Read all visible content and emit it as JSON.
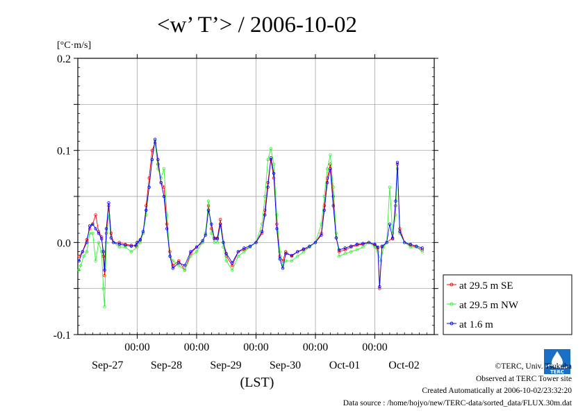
{
  "chart_data": {
    "type": "line",
    "title": "<w’ T’> / 2006-10-02",
    "ylabel": "[°C·m/s]",
    "xlabel": "(LST)",
    "ylim": [
      -0.1,
      0.2
    ],
    "yticks": [
      {
        "value": 0.2,
        "label": "0.2"
      },
      {
        "value": 0.1,
        "label": "0.1"
      },
      {
        "value": 0.0,
        "label": "0.0"
      },
      {
        "value": -0.1,
        "label": "-0.1"
      }
    ],
    "xlim_days": [
      0,
      6
    ],
    "midnight_ticks": [
      {
        "day": 1,
        "time_label": "00:00",
        "date_label": "Sep-28"
      },
      {
        "day": 2,
        "time_label": "00:00",
        "date_label": "Sep-29"
      },
      {
        "day": 3,
        "time_label": "00:00",
        "date_label": "Sep-30"
      },
      {
        "day": 4,
        "time_label": "00:00",
        "date_label": "Oct-01"
      },
      {
        "day": 5,
        "time_label": "00:00",
        "date_label": "Oct-02"
      }
    ],
    "first_date_label": {
      "day": 0.5,
      "label": "Sep-27"
    },
    "series": [
      {
        "name": "at 29.5 m SE",
        "color": "#ff0000",
        "points": [
          [
            0.02,
            -0.015
          ],
          [
            0.08,
            -0.01
          ],
          [
            0.15,
            0.003
          ],
          [
            0.2,
            0.015
          ],
          [
            0.25,
            0.02
          ],
          [
            0.3,
            0.03
          ],
          [
            0.35,
            0.012
          ],
          [
            0.4,
            0.006
          ],
          [
            0.43,
            -0.015
          ],
          [
            0.45,
            -0.036
          ],
          [
            0.48,
            0.01
          ],
          [
            0.52,
            0.04
          ],
          [
            0.56,
            0.01
          ],
          [
            0.6,
            0.0
          ],
          [
            0.7,
            0.0
          ],
          [
            0.8,
            -0.002
          ],
          [
            0.9,
            -0.003
          ],
          [
            0.98,
            -0.004
          ],
          [
            1.0,
            0.0
          ],
          [
            1.05,
            0.002
          ],
          [
            1.1,
            0.01
          ],
          [
            1.15,
            0.04
          ],
          [
            1.2,
            0.07
          ],
          [
            1.25,
            0.1
          ],
          [
            1.3,
            0.108
          ],
          [
            1.35,
            0.085
          ],
          [
            1.4,
            0.065
          ],
          [
            1.45,
            0.06
          ],
          [
            1.5,
            0.02
          ],
          [
            1.55,
            -0.01
          ],
          [
            1.6,
            -0.025
          ],
          [
            1.7,
            -0.02
          ],
          [
            1.8,
            -0.03
          ],
          [
            1.9,
            -0.012
          ],
          [
            2.0,
            -0.005
          ],
          [
            2.1,
            0.0
          ],
          [
            2.15,
            0.01
          ],
          [
            2.2,
            0.04
          ],
          [
            2.25,
            0.015
          ],
          [
            2.3,
            0.005
          ],
          [
            2.35,
            0.005
          ],
          [
            2.4,
            0.025
          ],
          [
            2.45,
            0.0
          ],
          [
            2.5,
            -0.015
          ],
          [
            2.6,
            -0.025
          ],
          [
            2.7,
            -0.01
          ],
          [
            2.8,
            -0.008
          ],
          [
            2.9,
            -0.005
          ],
          [
            3.0,
            0.0
          ],
          [
            3.1,
            0.01
          ],
          [
            3.15,
            0.035
          ],
          [
            3.2,
            0.065
          ],
          [
            3.25,
            0.09
          ],
          [
            3.3,
            0.07
          ],
          [
            3.35,
            0.02
          ],
          [
            3.4,
            -0.015
          ],
          [
            3.45,
            -0.02
          ],
          [
            3.5,
            -0.01
          ],
          [
            3.6,
            -0.015
          ],
          [
            3.7,
            -0.01
          ],
          [
            3.8,
            -0.008
          ],
          [
            3.9,
            -0.005
          ],
          [
            4.0,
            0.0
          ],
          [
            4.1,
            0.01
          ],
          [
            4.15,
            0.04
          ],
          [
            4.2,
            0.07
          ],
          [
            4.25,
            0.085
          ],
          [
            4.3,
            0.05
          ],
          [
            4.35,
            0.005
          ],
          [
            4.4,
            -0.01
          ],
          [
            4.5,
            -0.008
          ],
          [
            4.6,
            -0.005
          ],
          [
            4.7,
            -0.003
          ],
          [
            4.8,
            -0.002
          ],
          [
            4.9,
            0.0
          ],
          [
            5.0,
            -0.003
          ],
          [
            5.05,
            -0.006
          ],
          [
            5.08,
            -0.05
          ],
          [
            5.12,
            -0.005
          ],
          [
            5.2,
            0.0
          ],
          [
            5.3,
            0.005
          ],
          [
            5.35,
            0.04
          ],
          [
            5.38,
            0.085
          ],
          [
            5.42,
            0.015
          ],
          [
            5.5,
            0.0
          ],
          [
            5.6,
            -0.003
          ],
          [
            5.7,
            -0.005
          ],
          [
            5.8,
            -0.008
          ]
        ]
      },
      {
        "name": "at 29.5 m NW",
        "color": "#33ee33",
        "points": [
          [
            0.02,
            -0.03
          ],
          [
            0.05,
            -0.025
          ],
          [
            0.1,
            -0.015
          ],
          [
            0.15,
            -0.01
          ],
          [
            0.2,
            0.01
          ],
          [
            0.25,
            0.01
          ],
          [
            0.3,
            -0.02
          ],
          [
            0.35,
            0.0
          ],
          [
            0.4,
            -0.01
          ],
          [
            0.43,
            -0.05
          ],
          [
            0.45,
            -0.07
          ],
          [
            0.48,
            0.0
          ],
          [
            0.52,
            0.03
          ],
          [
            0.56,
            0.005
          ],
          [
            0.6,
            0.0
          ],
          [
            0.7,
            -0.005
          ],
          [
            0.8,
            -0.005
          ],
          [
            0.9,
            -0.01
          ],
          [
            1.0,
            -0.005
          ],
          [
            1.05,
            0.0
          ],
          [
            1.1,
            0.01
          ],
          [
            1.15,
            0.03
          ],
          [
            1.2,
            0.06
          ],
          [
            1.25,
            0.09
          ],
          [
            1.3,
            0.11
          ],
          [
            1.35,
            0.08
          ],
          [
            1.4,
            0.07
          ],
          [
            1.45,
            0.08
          ],
          [
            1.5,
            0.03
          ],
          [
            1.55,
            -0.015
          ],
          [
            1.6,
            -0.02
          ],
          [
            1.7,
            -0.025
          ],
          [
            1.8,
            -0.03
          ],
          [
            1.9,
            -0.015
          ],
          [
            2.0,
            -0.01
          ],
          [
            2.1,
            0.0
          ],
          [
            2.15,
            0.01
          ],
          [
            2.2,
            0.045
          ],
          [
            2.25,
            0.01
          ],
          [
            2.3,
            0.0
          ],
          [
            2.35,
            0.0
          ],
          [
            2.4,
            0.02
          ],
          [
            2.45,
            -0.005
          ],
          [
            2.5,
            -0.02
          ],
          [
            2.6,
            -0.03
          ],
          [
            2.7,
            -0.015
          ],
          [
            2.8,
            -0.01
          ],
          [
            2.9,
            -0.005
          ],
          [
            3.0,
            0.0
          ],
          [
            3.1,
            0.02
          ],
          [
            3.15,
            0.05
          ],
          [
            3.2,
            0.09
          ],
          [
            3.25,
            0.102
          ],
          [
            3.3,
            0.085
          ],
          [
            3.35,
            0.03
          ],
          [
            3.4,
            -0.01
          ],
          [
            3.45,
            -0.025
          ],
          [
            3.5,
            -0.02
          ],
          [
            3.6,
            -0.02
          ],
          [
            3.7,
            -0.015
          ],
          [
            3.8,
            -0.01
          ],
          [
            3.9,
            -0.005
          ],
          [
            4.0,
            0.0
          ],
          [
            4.1,
            0.02
          ],
          [
            4.15,
            0.05
          ],
          [
            4.2,
            0.08
          ],
          [
            4.25,
            0.095
          ],
          [
            4.3,
            0.06
          ],
          [
            4.35,
            0.01
          ],
          [
            4.4,
            -0.015
          ],
          [
            4.5,
            -0.012
          ],
          [
            4.6,
            -0.01
          ],
          [
            4.7,
            -0.008
          ],
          [
            4.8,
            -0.005
          ],
          [
            4.9,
            0.0
          ],
          [
            5.0,
            -0.005
          ],
          [
            5.05,
            -0.01
          ],
          [
            5.1,
            -0.02
          ],
          [
            5.15,
            -0.005
          ],
          [
            5.2,
            0.0
          ],
          [
            5.25,
            0.06
          ],
          [
            5.3,
            0.01
          ],
          [
            5.35,
            0.03
          ],
          [
            5.38,
            0.08
          ],
          [
            5.42,
            0.01
          ],
          [
            5.5,
            0.0
          ],
          [
            5.6,
            -0.005
          ],
          [
            5.7,
            -0.005
          ],
          [
            5.8,
            -0.01
          ]
        ]
      },
      {
        "name": "at 1.6 m",
        "color": "#0000ff",
        "points": [
          [
            0.02,
            -0.02
          ],
          [
            0.08,
            -0.01
          ],
          [
            0.15,
            0.0
          ],
          [
            0.2,
            0.018
          ],
          [
            0.25,
            0.02
          ],
          [
            0.3,
            0.015
          ],
          [
            0.35,
            0.01
          ],
          [
            0.4,
            0.004
          ],
          [
            0.43,
            -0.01
          ],
          [
            0.45,
            -0.03
          ],
          [
            0.48,
            0.015
          ],
          [
            0.52,
            0.043
          ],
          [
            0.56,
            0.005
          ],
          [
            0.6,
            0.0
          ],
          [
            0.7,
            -0.002
          ],
          [
            0.8,
            -0.003
          ],
          [
            0.9,
            -0.004
          ],
          [
            0.98,
            -0.003
          ],
          [
            1.0,
            0.0
          ],
          [
            1.05,
            0.003
          ],
          [
            1.1,
            0.012
          ],
          [
            1.15,
            0.035
          ],
          [
            1.2,
            0.06
          ],
          [
            1.25,
            0.09
          ],
          [
            1.3,
            0.112
          ],
          [
            1.35,
            0.09
          ],
          [
            1.4,
            0.065
          ],
          [
            1.45,
            0.05
          ],
          [
            1.5,
            0.015
          ],
          [
            1.55,
            -0.015
          ],
          [
            1.6,
            -0.028
          ],
          [
            1.7,
            -0.022
          ],
          [
            1.8,
            -0.025
          ],
          [
            1.9,
            -0.01
          ],
          [
            2.0,
            -0.005
          ],
          [
            2.1,
            0.002
          ],
          [
            2.15,
            0.008
          ],
          [
            2.2,
            0.035
          ],
          [
            2.25,
            0.02
          ],
          [
            2.3,
            0.004
          ],
          [
            2.35,
            0.004
          ],
          [
            2.4,
            0.02
          ],
          [
            2.45,
            0.0
          ],
          [
            2.5,
            -0.012
          ],
          [
            2.6,
            -0.022
          ],
          [
            2.7,
            -0.01
          ],
          [
            2.8,
            -0.006
          ],
          [
            2.9,
            -0.004
          ],
          [
            3.0,
            0.0
          ],
          [
            3.1,
            0.012
          ],
          [
            3.15,
            0.03
          ],
          [
            3.2,
            0.06
          ],
          [
            3.25,
            0.092
          ],
          [
            3.3,
            0.075
          ],
          [
            3.35,
            0.015
          ],
          [
            3.4,
            -0.018
          ],
          [
            3.45,
            -0.028
          ],
          [
            3.5,
            -0.012
          ],
          [
            3.6,
            -0.014
          ],
          [
            3.7,
            -0.01
          ],
          [
            3.8,
            -0.007
          ],
          [
            3.9,
            -0.004
          ],
          [
            4.0,
            0.0
          ],
          [
            4.1,
            0.008
          ],
          [
            4.15,
            0.035
          ],
          [
            4.2,
            0.065
          ],
          [
            4.25,
            0.08
          ],
          [
            4.3,
            0.04
          ],
          [
            4.35,
            0.005
          ],
          [
            4.4,
            -0.008
          ],
          [
            4.5,
            -0.006
          ],
          [
            4.6,
            -0.004
          ],
          [
            4.7,
            -0.002
          ],
          [
            4.8,
            -0.001
          ],
          [
            4.9,
            0.0
          ],
          [
            5.0,
            -0.002
          ],
          [
            5.05,
            -0.005
          ],
          [
            5.08,
            -0.048
          ],
          [
            5.12,
            -0.004
          ],
          [
            5.2,
            0.0
          ],
          [
            5.25,
            0.02
          ],
          [
            5.3,
            0.004
          ],
          [
            5.35,
            0.045
          ],
          [
            5.38,
            0.087
          ],
          [
            5.42,
            0.012
          ],
          [
            5.5,
            0.0
          ],
          [
            5.6,
            -0.002
          ],
          [
            5.7,
            -0.004
          ],
          [
            5.8,
            -0.006
          ]
        ]
      }
    ],
    "legend_position": "right"
  },
  "credits": {
    "copyright": "©TERC, Univ. Tsukuba",
    "observed": "Observed at TERC Tower site",
    "created": "Created Automatically at 2006-10-02/23:32:20",
    "source": "Data source : /home/hojyo/new/TERC-data/sorted_data/FLUX.30m.dat"
  },
  "logo_text": "TERC"
}
